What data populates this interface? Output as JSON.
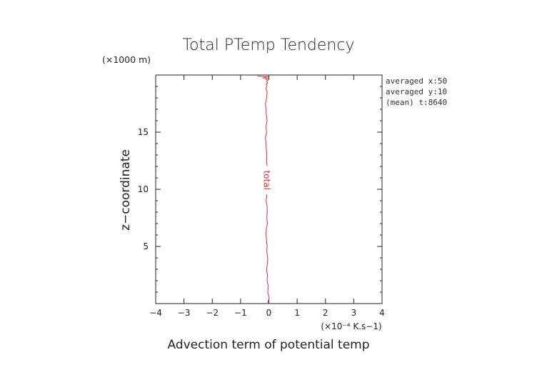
{
  "chart_data": {
    "type": "line",
    "title": "Total PTemp Tendency",
    "xlabel": "Advection term of potential temp",
    "x_units": "(×10⁻⁴ K.s−1)",
    "ylabel": "z−coordinate",
    "y_units": "(×1000 m)",
    "xlim": [
      -4,
      4
    ],
    "ylim": [
      0,
      20
    ],
    "x_ticks": [
      -4,
      -3,
      -2,
      -1,
      0,
      1,
      2,
      3,
      4
    ],
    "x_tick_labels": [
      "−4",
      "−3",
      "−2",
      "−1",
      "0",
      "1",
      "2",
      "3",
      "4"
    ],
    "y_ticks": [
      5,
      10,
      15
    ],
    "y_tick_labels": [
      "5",
      "10",
      "15"
    ],
    "notes": [
      "averaged  x:50",
      "averaged  y:10",
      "(mean) t:8640"
    ],
    "series": [
      {
        "name": "total",
        "color": "#e03030",
        "x": [
          -0.03,
          0.01,
          -0.04,
          -0.02,
          -0.06,
          -0.05,
          -0.08,
          -0.05,
          -0.04,
          -0.07,
          -0.06,
          -0.08,
          -0.1,
          -0.09,
          -0.05,
          -0.07,
          -0.06,
          -0.06,
          -0.1,
          -0.07,
          -0.05,
          -0.08,
          -0.1,
          -0.08,
          -0.06,
          -0.08,
          -0.07,
          -0.09,
          -0.1,
          -0.12,
          -0.08,
          -0.1,
          -0.06,
          -0.09,
          -0.1,
          -0.12,
          -0.08,
          -0.06,
          -0.1,
          -0.08,
          -0.09,
          -0.04,
          -0.08,
          -0.05,
          -0.03,
          -0.1,
          -0.05,
          -0.2,
          -0.15,
          0.0,
          -0.4
        ],
        "y": [
          0.1,
          0.5,
          1.0,
          1.5,
          2.0,
          2.5,
          3.0,
          3.5,
          4.0,
          4.5,
          5.0,
          5.5,
          6.0,
          6.5,
          7.0,
          7.5,
          8.0,
          8.5,
          9.0,
          9.5,
          10.0,
          10.5,
          11.0,
          11.5,
          12.0,
          12.5,
          13.0,
          13.5,
          14.0,
          14.5,
          15.0,
          15.5,
          16.0,
          16.5,
          17.0,
          17.5,
          18.0,
          18.5,
          18.8,
          19.0,
          19.2,
          19.3,
          19.4,
          19.5,
          19.55,
          19.6,
          19.7,
          19.75,
          19.8,
          19.85,
          19.9
        ]
      }
    ]
  }
}
